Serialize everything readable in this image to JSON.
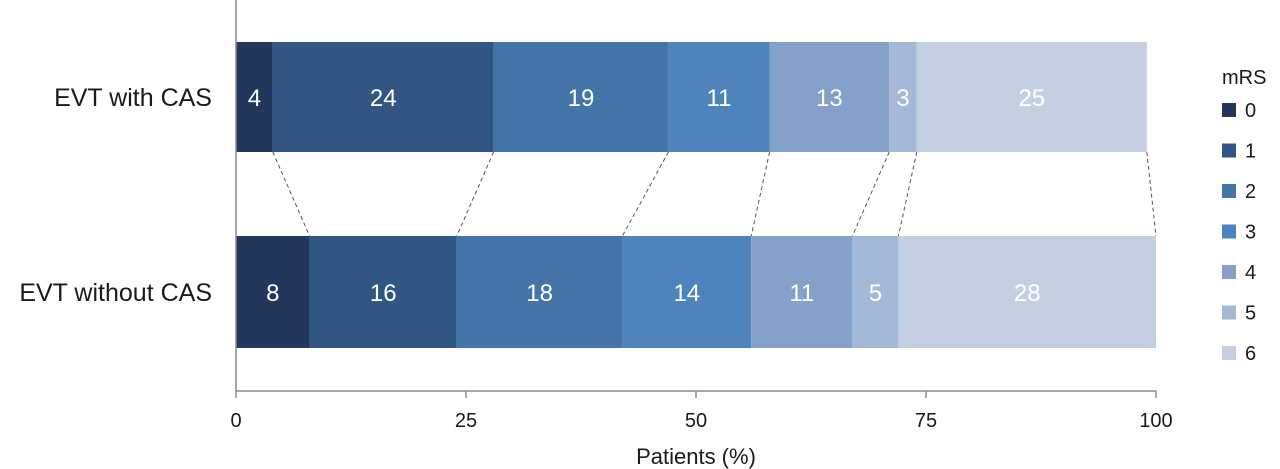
{
  "chart_data": {
    "type": "bar",
    "orientation": "horizontal",
    "stacked": true,
    "title": "",
    "xlabel": "Patients (%)",
    "ylabel": "",
    "xlim": [
      0,
      100
    ],
    "xticks": [
      "0",
      "25",
      "50",
      "75",
      "100"
    ],
    "grid": false,
    "categories": [
      "EVT with CAS",
      "EVT without CAS"
    ],
    "legend": {
      "title": "mRS",
      "position": "right"
    },
    "series": [
      {
        "name": "0",
        "color": "#22375b",
        "values": [
          4,
          8
        ]
      },
      {
        "name": "1",
        "color": "#315684",
        "values": [
          24,
          16
        ]
      },
      {
        "name": "2",
        "color": "#4574a8",
        "values": [
          19,
          18
        ]
      },
      {
        "name": "3",
        "color": "#4f83bd",
        "values": [
          11,
          14
        ]
      },
      {
        "name": "4",
        "color": "#84a1c9",
        "values": [
          13,
          11
        ]
      },
      {
        "name": "5",
        "color": "#a4b8d8",
        "values": [
          3,
          5
        ]
      },
      {
        "name": "6",
        "color": "#c4cfe2",
        "values": [
          25,
          28
        ]
      }
    ],
    "connectors": "dashed lines linking segment boundaries between bars"
  }
}
